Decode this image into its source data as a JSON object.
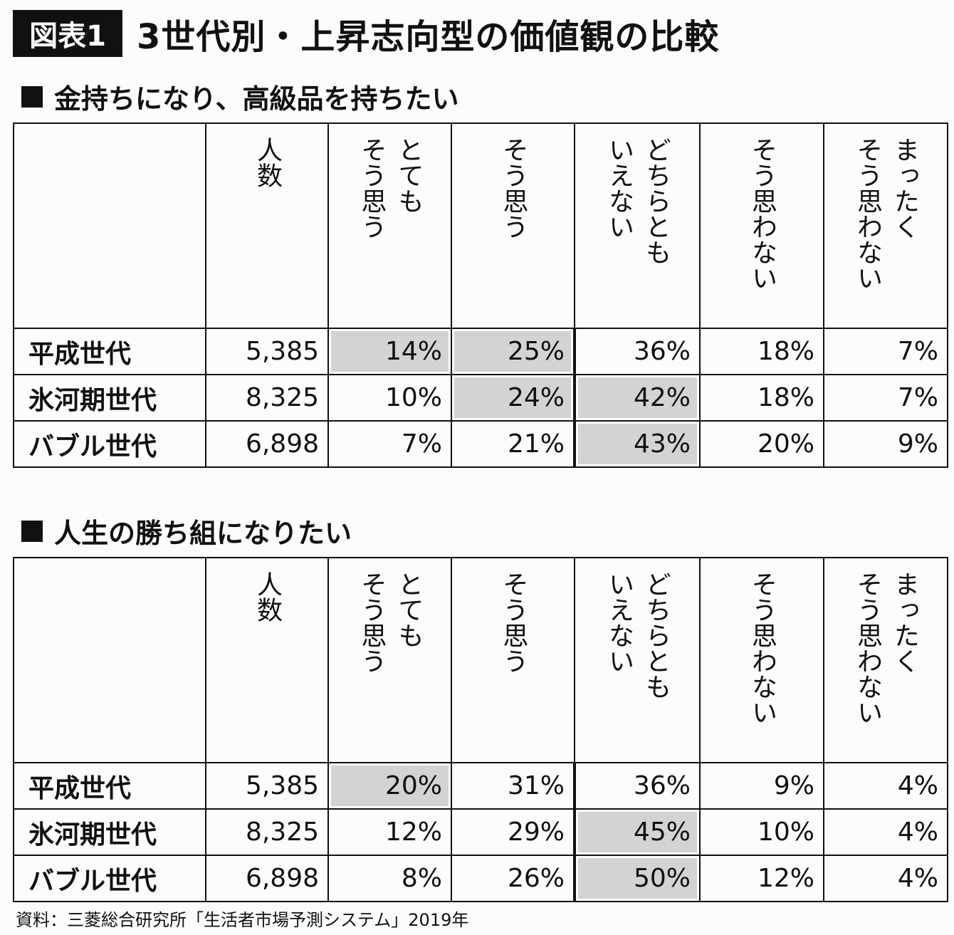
{
  "figure": {
    "badge": "図表1",
    "title": "3世代別・上昇志向型の価値観の比較",
    "source": "資料：三菱総合研究所「生活者市場予測システム」2019年"
  },
  "colors": {
    "highlight": "#d3d3d3",
    "border": "#111111"
  },
  "chart_data": [
    {
      "type": "table",
      "title": "金持ちになり、高級品を持ちたい",
      "columns": [
        "",
        "人数",
        "とても\nそう思う",
        "そう思う",
        "どちらとも\nいえない",
        "そう思わない",
        "まったく\nそう思わない"
      ],
      "rows": [
        {
          "label": "平成世代",
          "count": "5,385",
          "values": [
            "14%",
            "25%",
            "36%",
            "18%",
            "7%"
          ],
          "highlighted": [
            0,
            1
          ]
        },
        {
          "label": "氷河期世代",
          "count": "8,325",
          "values": [
            "10%",
            "24%",
            "42%",
            "18%",
            "7%"
          ],
          "highlighted": [
            1,
            2
          ]
        },
        {
          "label": "バブル世代",
          "count": "6,898",
          "values": [
            "7%",
            "21%",
            "43%",
            "20%",
            "9%"
          ],
          "highlighted": [
            2
          ]
        }
      ]
    },
    {
      "type": "table",
      "title": "人生の勝ち組になりたい",
      "columns": [
        "",
        "人数",
        "とても\nそう思う",
        "そう思う",
        "どちらとも\nいえない",
        "そう思わない",
        "まったく\nそう思わない"
      ],
      "rows": [
        {
          "label": "平成世代",
          "count": "5,385",
          "values": [
            "20%",
            "31%",
            "36%",
            "9%",
            "4%"
          ],
          "highlighted": [
            0
          ]
        },
        {
          "label": "氷河期世代",
          "count": "8,325",
          "values": [
            "12%",
            "29%",
            "45%",
            "10%",
            "4%"
          ],
          "highlighted": [
            2
          ]
        },
        {
          "label": "バブル世代",
          "count": "6,898",
          "values": [
            "8%",
            "26%",
            "50%",
            "12%",
            "4%"
          ],
          "highlighted": [
            2
          ]
        }
      ]
    }
  ]
}
